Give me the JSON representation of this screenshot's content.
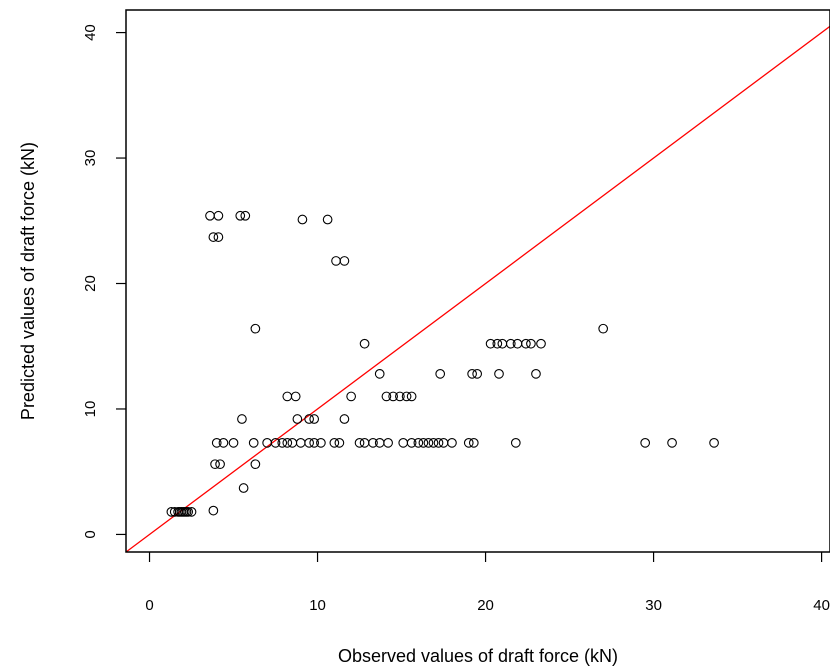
{
  "chart_data": {
    "type": "scatter",
    "xlabel": "Observed values of draft force (kN)",
    "ylabel": "Predicted values of draft force (kN)",
    "xlim": [
      -1.4,
      40.5
    ],
    "ylim": [
      -1.4,
      41.8
    ],
    "xticks": [
      0,
      10,
      20,
      30,
      40
    ],
    "yticks": [
      0,
      10,
      20,
      30,
      40
    ],
    "reference_line": {
      "slope": 1,
      "intercept": 0,
      "color": "#ff0000"
    },
    "marker": "open-circle",
    "grid": false,
    "points": [
      [
        1.3,
        1.8
      ],
      [
        1.5,
        1.8
      ],
      [
        1.7,
        1.8
      ],
      [
        1.9,
        1.8
      ],
      [
        2.0,
        1.8
      ],
      [
        2.2,
        1.8
      ],
      [
        2.3,
        1.8
      ],
      [
        2.5,
        1.8
      ],
      [
        1.8,
        1.8
      ],
      [
        2.1,
        1.8
      ],
      [
        3.8,
        1.9
      ],
      [
        5.6,
        3.7
      ],
      [
        3.9,
        5.6
      ],
      [
        4.2,
        5.6
      ],
      [
        6.3,
        5.6
      ],
      [
        4.0,
        7.3
      ],
      [
        4.4,
        7.3
      ],
      [
        5.0,
        7.3
      ],
      [
        6.2,
        7.3
      ],
      [
        7.0,
        7.3
      ],
      [
        7.5,
        7.3
      ],
      [
        7.9,
        7.3
      ],
      [
        8.2,
        7.3
      ],
      [
        8.5,
        7.3
      ],
      [
        9.0,
        7.3
      ],
      [
        9.5,
        7.3
      ],
      [
        9.8,
        7.3
      ],
      [
        10.2,
        7.3
      ],
      [
        11.0,
        7.3
      ],
      [
        11.3,
        7.3
      ],
      [
        12.5,
        7.3
      ],
      [
        12.8,
        7.3
      ],
      [
        13.3,
        7.3
      ],
      [
        13.7,
        7.3
      ],
      [
        14.2,
        7.3
      ],
      [
        15.1,
        7.3
      ],
      [
        15.6,
        7.3
      ],
      [
        16.0,
        7.3
      ],
      [
        16.3,
        7.3
      ],
      [
        16.6,
        7.3
      ],
      [
        16.9,
        7.3
      ],
      [
        17.2,
        7.3
      ],
      [
        17.5,
        7.3
      ],
      [
        18.0,
        7.3
      ],
      [
        19.0,
        7.3
      ],
      [
        19.3,
        7.3
      ],
      [
        21.8,
        7.3
      ],
      [
        29.5,
        7.3
      ],
      [
        31.1,
        7.3
      ],
      [
        33.6,
        7.3
      ],
      [
        5.5,
        9.2
      ],
      [
        8.8,
        9.2
      ],
      [
        9.5,
        9.2
      ],
      [
        9.8,
        9.2
      ],
      [
        11.6,
        9.2
      ],
      [
        8.2,
        11.0
      ],
      [
        8.7,
        11.0
      ],
      [
        12.0,
        11.0
      ],
      [
        14.1,
        11.0
      ],
      [
        14.5,
        11.0
      ],
      [
        14.9,
        11.0
      ],
      [
        15.3,
        11.0
      ],
      [
        15.6,
        11.0
      ],
      [
        13.7,
        12.8
      ],
      [
        17.3,
        12.8
      ],
      [
        19.2,
        12.8
      ],
      [
        19.5,
        12.8
      ],
      [
        20.8,
        12.8
      ],
      [
        23.0,
        12.8
      ],
      [
        12.8,
        15.2
      ],
      [
        20.3,
        15.2
      ],
      [
        20.7,
        15.2
      ],
      [
        21.0,
        15.2
      ],
      [
        21.5,
        15.2
      ],
      [
        21.9,
        15.2
      ],
      [
        22.4,
        15.2
      ],
      [
        22.7,
        15.2
      ],
      [
        23.3,
        15.2
      ],
      [
        6.3,
        16.4
      ],
      [
        27.0,
        16.4
      ],
      [
        11.1,
        21.8
      ],
      [
        11.6,
        21.8
      ],
      [
        3.8,
        23.7
      ],
      [
        4.1,
        23.7
      ],
      [
        3.6,
        25.4
      ],
      [
        4.1,
        25.4
      ],
      [
        5.4,
        25.4
      ],
      [
        5.7,
        25.4
      ],
      [
        9.1,
        25.1
      ],
      [
        10.6,
        25.1
      ]
    ]
  }
}
